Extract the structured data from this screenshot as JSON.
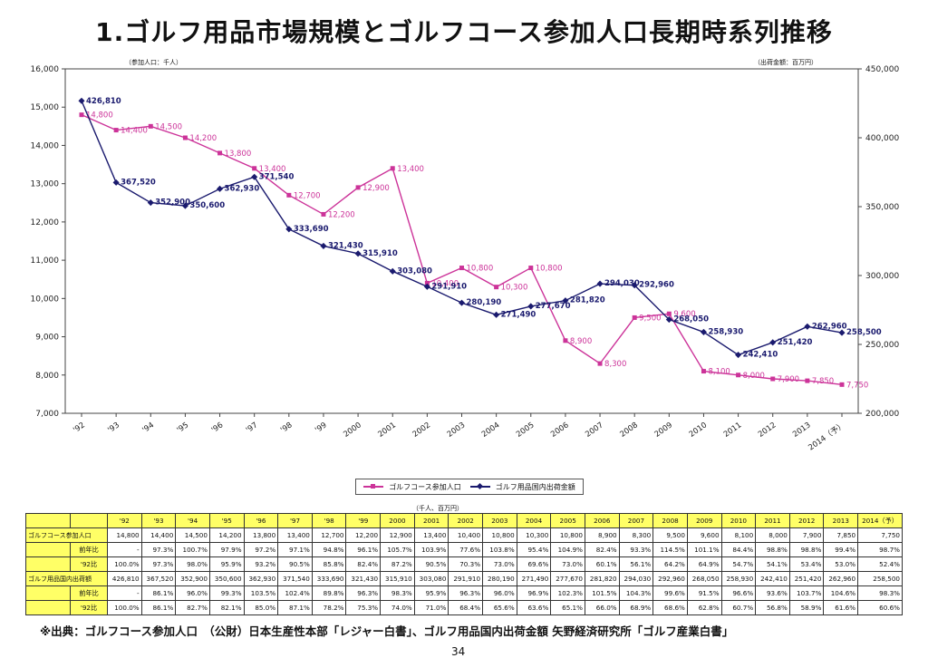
{
  "title": "1.ゴルフ用品市場規模とゴルフコース参加人口長期時系列推移",
  "left_unit": "（参加人口：千人）",
  "right_unit": "（出荷金額：百万円）",
  "colors": {
    "participants": "#cc3399",
    "shipments": "#1a1a6e"
  },
  "chart_data": {
    "type": "line",
    "categories": [
      "'92",
      "'93",
      "'94",
      "'95",
      "'96",
      "'97",
      "'98",
      "'99",
      "2000",
      "2001",
      "2002",
      "2003",
      "2004",
      "2005",
      "2006",
      "2007",
      "2008",
      "2009",
      "2010",
      "2011",
      "2012",
      "2013",
      "2014（予）"
    ],
    "y_left": {
      "min": 7000,
      "max": 16000,
      "ticks": [
        "7,000",
        "8,000",
        "9,000",
        "10,000",
        "11,000",
        "12,000",
        "13,000",
        "14,000",
        "15,000",
        "16,000"
      ]
    },
    "y_right": {
      "min": 200000,
      "max": 450000,
      "ticks": [
        "200,000",
        "250,000",
        "300,000",
        "350,000",
        "400,000",
        "450,000"
      ]
    },
    "series": [
      {
        "name": "ゴルフコース参加人口",
        "axis": "left",
        "values": [
          14800,
          14400,
          14500,
          14200,
          13800,
          13400,
          12700,
          12200,
          12900,
          13400,
          10400,
          10800,
          10300,
          10800,
          8900,
          8300,
          9500,
          9600,
          8100,
          8000,
          7900,
          7850,
          7750
        ],
        "labels": [
          "14,800",
          "14,400",
          "14,500",
          "14,200",
          "13,800",
          "13,400",
          "12,700",
          "12,200",
          "12,900",
          "13,400",
          "10,400",
          "10,800",
          "10,300",
          "10,800",
          "8,900",
          "8,300",
          "9,500",
          "9,600",
          "8,100",
          "8,000",
          "7,900",
          "7,850",
          "7,750"
        ]
      },
      {
        "name": "ゴルフ用品国内出荷金額",
        "axis": "right",
        "values": [
          426810,
          367520,
          352900,
          350600,
          362930,
          371540,
          333690,
          321430,
          315910,
          303080,
          291910,
          280190,
          271490,
          277670,
          281820,
          294030,
          292960,
          268050,
          258930,
          242410,
          251420,
          262960,
          258500
        ],
        "labels": [
          "426,810",
          "367,520",
          "352,900",
          "350,600",
          "362,930",
          "371,540",
          "333,690",
          "321,430",
          "315,910",
          "303,080",
          "291,910",
          "280,190",
          "271,490",
          "277,670",
          "281,820",
          "294,030",
          "292,960",
          "268,050",
          "258,930",
          "242,410",
          "251,420",
          "262,960",
          "258,500"
        ]
      }
    ],
    "grid": false,
    "legend": "bottom-center"
  },
  "table": {
    "unit": "（千人、百万円）",
    "headers": [
      "",
      "",
      "'92",
      "'93",
      "'94",
      "'95",
      "'96",
      "'97",
      "'98",
      "'99",
      "2000",
      "2001",
      "2002",
      "2003",
      "2004",
      "2005",
      "2006",
      "2007",
      "2008",
      "2009",
      "2010",
      "2011",
      "2012",
      "2013",
      "2014（予）"
    ],
    "rows": [
      {
        "label": "ゴルフコース参加人口",
        "sub": "",
        "kind": "main",
        "cells": [
          "14,800",
          "14,400",
          "14,500",
          "14,200",
          "13,800",
          "13,400",
          "12,700",
          "12,200",
          "12,900",
          "13,400",
          "10,400",
          "10,800",
          "10,300",
          "10,800",
          "8,900",
          "8,300",
          "9,500",
          "9,600",
          "8,100",
          "8,000",
          "7,900",
          "7,850",
          "7,750"
        ]
      },
      {
        "label": "",
        "sub": "前年比",
        "kind": "pct",
        "cells": [
          "-",
          "97.3%",
          "100.7%",
          "97.9%",
          "97.2%",
          "97.1%",
          "94.8%",
          "96.1%",
          "105.7%",
          "103.9%",
          "77.6%",
          "103.8%",
          "95.4%",
          "104.9%",
          "82.4%",
          "93.3%",
          "114.5%",
          "101.1%",
          "84.4%",
          "98.8%",
          "98.8%",
          "99.4%",
          "98.7%"
        ]
      },
      {
        "label": "",
        "sub": "'92比",
        "kind": "pct",
        "cells": [
          "100.0%",
          "97.3%",
          "98.0%",
          "95.9%",
          "93.2%",
          "90.5%",
          "85.8%",
          "82.4%",
          "87.2%",
          "90.5%",
          "70.3%",
          "73.0%",
          "69.6%",
          "73.0%",
          "60.1%",
          "56.1%",
          "64.2%",
          "64.9%",
          "54.7%",
          "54.1%",
          "53.4%",
          "53.0%",
          "52.4%"
        ]
      },
      {
        "label": "ゴルフ用品国内出荷額",
        "sub": "",
        "kind": "main",
        "cells": [
          "426,810",
          "367,520",
          "352,900",
          "350,600",
          "362,930",
          "371,540",
          "333,690",
          "321,430",
          "315,910",
          "303,080",
          "291,910",
          "280,190",
          "271,490",
          "277,670",
          "281,820",
          "294,030",
          "292,960",
          "268,050",
          "258,930",
          "242,410",
          "251,420",
          "262,960",
          "258,500"
        ]
      },
      {
        "label": "",
        "sub": "前年比",
        "kind": "pct",
        "cells": [
          "-",
          "86.1%",
          "96.0%",
          "99.3%",
          "103.5%",
          "102.4%",
          "89.8%",
          "96.3%",
          "98.3%",
          "95.9%",
          "96.3%",
          "96.0%",
          "96.9%",
          "102.3%",
          "101.5%",
          "104.3%",
          "99.6%",
          "91.5%",
          "96.6%",
          "93.6%",
          "103.7%",
          "104.6%",
          "98.3%"
        ]
      },
      {
        "label": "",
        "sub": "'92比",
        "kind": "pct",
        "cells": [
          "100.0%",
          "86.1%",
          "82.7%",
          "82.1%",
          "85.0%",
          "87.1%",
          "78.2%",
          "75.3%",
          "74.0%",
          "71.0%",
          "68.4%",
          "65.6%",
          "63.6%",
          "65.1%",
          "66.0%",
          "68.9%",
          "68.6%",
          "62.8%",
          "60.7%",
          "56.8%",
          "58.9%",
          "61.6%",
          "60.6%"
        ]
      }
    ]
  },
  "source": "※出典：ゴルフコース参加人口　（公財）日本生産性本部「レジャー白書」、ゴルフ用品国内出荷金額 矢野経済研究所「ゴルフ産業白書」",
  "page_number": "34"
}
